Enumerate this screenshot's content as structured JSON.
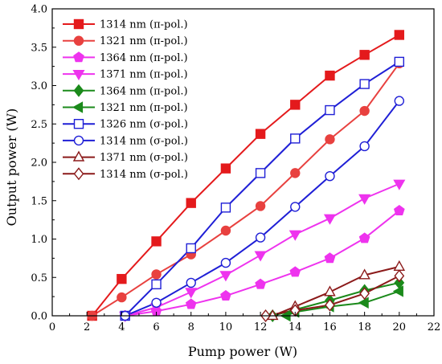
{
  "chart_data": {
    "type": "line",
    "title": "",
    "xlabel": "Pump power (W)",
    "ylabel": "Output power (W)",
    "xlim": [
      0,
      22
    ],
    "ylim": [
      0,
      4.0
    ],
    "x_ticks": [
      "0",
      "2",
      "4",
      "6",
      "8",
      "10",
      "12",
      "14",
      "16",
      "18",
      "20",
      "22"
    ],
    "y_ticks": [
      "0.0",
      "0.5",
      "1.0",
      "1.5",
      "2.0",
      "2.5",
      "3.0",
      "3.5",
      "4.0"
    ],
    "grid": false,
    "legend_position": "top-left",
    "series": [
      {
        "name": "1314 nm (π-pol.)",
        "color": "#e41a1c",
        "marker": "square",
        "filled": true,
        "x": [
          2.3,
          4.0,
          6.0,
          8.0,
          10.0,
          12.0,
          14.0,
          16.0,
          18.0,
          20.0
        ],
        "y": [
          0.0,
          0.48,
          0.97,
          1.47,
          1.92,
          2.37,
          2.75,
          3.13,
          3.4,
          3.66
        ]
      },
      {
        "name": "1321 nm (π-pol.)",
        "color": "#e8413f",
        "marker": "circle",
        "filled": true,
        "x": [
          2.3,
          4.0,
          6.0,
          8.0,
          10.0,
          12.0,
          14.0,
          16.0,
          18.0,
          20.0
        ],
        "y": [
          0.0,
          0.24,
          0.54,
          0.8,
          1.11,
          1.43,
          1.86,
          2.3,
          2.67,
          3.29
        ]
      },
      {
        "name": "1364 nm (π-pol.)",
        "color": "#ee33ee",
        "marker": "pentagon",
        "filled": true,
        "x": [
          4.2,
          6.0,
          8.0,
          10.0,
          12.0,
          14.0,
          16.0,
          18.0,
          20.0
        ],
        "y": [
          0.0,
          0.06,
          0.15,
          0.26,
          0.41,
          0.57,
          0.75,
          1.01,
          1.37
        ]
      },
      {
        "name": "1371 nm (π-pol.)",
        "color": "#ee33ee",
        "marker": "triangle-down",
        "filled": true,
        "x": [
          4.2,
          6.0,
          8.0,
          10.0,
          12.0,
          14.0,
          16.0,
          18.0,
          20.0
        ],
        "y": [
          0.0,
          0.11,
          0.31,
          0.53,
          0.79,
          1.06,
          1.27,
          1.53,
          1.72
        ]
      },
      {
        "name": "1364 nm (π-pol.)",
        "color": "#1b8a1b",
        "marker": "diamond",
        "filled": true,
        "x": [
          12.7,
          14.0,
          16.0,
          18.0,
          20.0
        ],
        "y": [
          0.0,
          0.08,
          0.2,
          0.33,
          0.43
        ]
      },
      {
        "name": "1321 nm (π-pol.)",
        "color": "#1b8a1b",
        "marker": "triangle-left",
        "filled": true,
        "x": [
          13.5,
          14.0,
          16.0,
          18.0,
          20.0
        ],
        "y": [
          0.0,
          0.05,
          0.12,
          0.17,
          0.32
        ]
      },
      {
        "name": "1326 nm (σ-pol.)",
        "color": "#1f1fd6",
        "marker": "square",
        "filled": false,
        "x": [
          4.2,
          6.0,
          8.0,
          10.0,
          12.0,
          14.0,
          16.0,
          18.0,
          20.0
        ],
        "y": [
          0.0,
          0.41,
          0.88,
          1.41,
          1.86,
          2.31,
          2.68,
          3.02,
          3.31
        ]
      },
      {
        "name": "1314 nm (σ-pol.)",
        "color": "#1f1fd6",
        "marker": "circle",
        "filled": false,
        "x": [
          4.2,
          6.0,
          8.0,
          10.0,
          12.0,
          14.0,
          16.0,
          18.0,
          20.0
        ],
        "y": [
          0.0,
          0.17,
          0.43,
          0.69,
          1.02,
          1.42,
          1.82,
          2.21,
          2.8
        ]
      },
      {
        "name": "1371 nm (σ-pol.)",
        "color": "#8b1a1a",
        "marker": "triangle-up",
        "filled": false,
        "x": [
          12.7,
          14.0,
          16.0,
          18.0,
          20.0
        ],
        "y": [
          0.0,
          0.12,
          0.31,
          0.53,
          0.64
        ]
      },
      {
        "name": "1314 nm (σ-pol.)",
        "color": "#8b1a1a",
        "marker": "diamond",
        "filled": false,
        "x": [
          12.3,
          14.0,
          16.0,
          18.0,
          20.0
        ],
        "y": [
          0.0,
          0.07,
          0.14,
          0.29,
          0.52
        ]
      }
    ]
  }
}
